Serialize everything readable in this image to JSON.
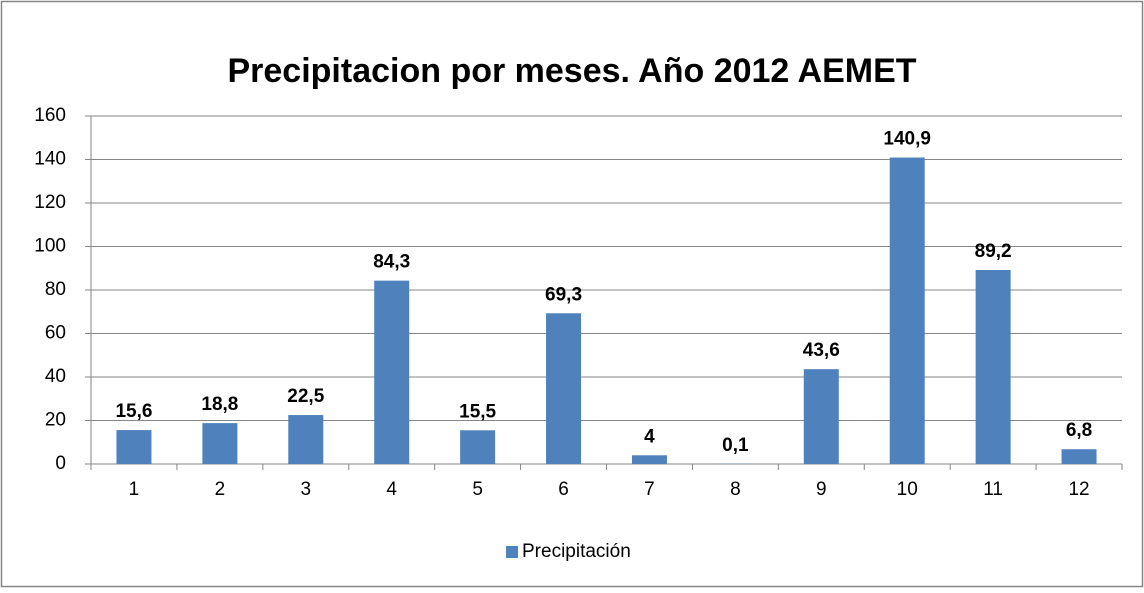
{
  "chart_data": {
    "type": "bar",
    "title": "Precipitacion por meses. Año 2012 AEMET",
    "categories": [
      "1",
      "2",
      "3",
      "4",
      "5",
      "6",
      "7",
      "8",
      "9",
      "10",
      "11",
      "12"
    ],
    "series": [
      {
        "name": "Precipitación",
        "color": "#4f81bd",
        "values": [
          15.6,
          18.8,
          22.5,
          84.3,
          15.5,
          69.3,
          4,
          0.1,
          43.6,
          140.9,
          89.2,
          6.8
        ],
        "value_labels": [
          "15,6",
          "18,8",
          "22,5",
          "84,3",
          "15,5",
          "69,3",
          "4",
          "0,1",
          "43,6",
          "140,9",
          "89,2",
          "6,8"
        ]
      }
    ],
    "ylim": [
      0,
      160
    ],
    "yticks": [
      0,
      20,
      40,
      60,
      80,
      100,
      120,
      140,
      160
    ],
    "grid": true,
    "legend": "bottom"
  }
}
